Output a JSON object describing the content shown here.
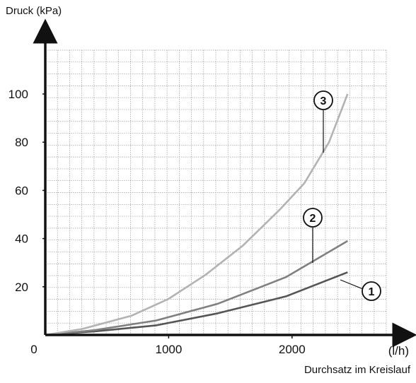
{
  "chart_data": {
    "type": "line",
    "ylabel": "Druck (kPa)",
    "xlabel": "Durchsatz im Kreislauf",
    "x_unit": "(l/h)",
    "origin_label": "0",
    "xlim": [
      0,
      2620
    ],
    "ylim": [
      0,
      115
    ],
    "x_ticks": [
      1000,
      2000
    ],
    "y_ticks": [
      20,
      40,
      60,
      80,
      100
    ],
    "grid": true,
    "series": [
      {
        "name": "1",
        "color": "#555555",
        "x": [
          0,
          400,
          900,
          1400,
          1950,
          2450
        ],
        "y": [
          0,
          1.5,
          4,
          9,
          16,
          26
        ]
      },
      {
        "name": "2",
        "color": "#808080",
        "x": [
          0,
          400,
          900,
          1400,
          1950,
          2450
        ],
        "y": [
          0,
          2,
          6,
          13,
          24,
          39
        ]
      },
      {
        "name": "3",
        "color": "#b3b3b3",
        "x": [
          0,
          300,
          700,
          1000,
          1300,
          1600,
          1900,
          2100,
          2300,
          2450
        ],
        "y": [
          0,
          2.5,
          8,
          15,
          25,
          37,
          52,
          63,
          80,
          100
        ]
      }
    ]
  }
}
